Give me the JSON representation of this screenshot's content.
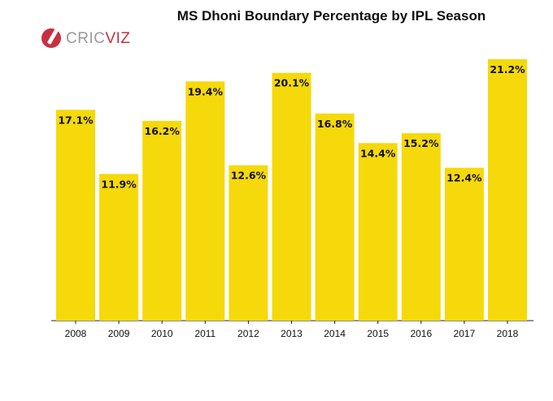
{
  "header": {
    "title": "MS Dhoni Boundary Percentage by IPL Season",
    "logo_text_part1": "CRIC",
    "logo_text_part2": "VIZ"
  },
  "colors": {
    "bar": "#f5d90a",
    "axis": "#222222",
    "logo_red": "#c7303f",
    "logo_gray": "#9a9a9a"
  },
  "chart_data": {
    "type": "bar",
    "title": "MS Dhoni Boundary Percentage by IPL Season",
    "xlabel": "",
    "ylabel": "",
    "categories": [
      "2008",
      "2009",
      "2010",
      "2011",
      "2012",
      "2013",
      "2014",
      "2015",
      "2016",
      "2017",
      "2018"
    ],
    "values": [
      17.1,
      11.9,
      16.2,
      19.4,
      12.6,
      20.1,
      16.8,
      14.4,
      15.2,
      12.4,
      21.2
    ],
    "value_labels": [
      "17.1%",
      "11.9%",
      "16.2%",
      "19.4%",
      "12.6%",
      "20.1%",
      "16.8%",
      "14.4%",
      "15.2%",
      "12.4%",
      "21.2%"
    ],
    "ylim": [
      0,
      21.2
    ],
    "grid": false,
    "legend": "none"
  }
}
